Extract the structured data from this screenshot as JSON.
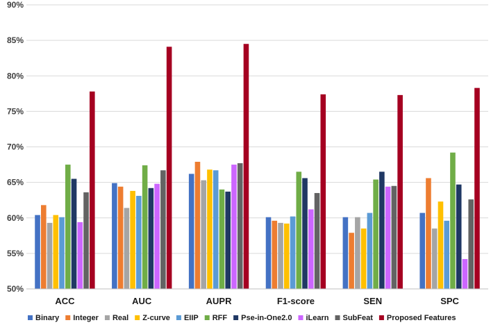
{
  "chart_data": {
    "type": "bar",
    "title": "",
    "xlabel": "",
    "ylabel": "",
    "ylim": [
      50,
      90
    ],
    "yticks": [
      50,
      55,
      60,
      65,
      70,
      75,
      80,
      85,
      90
    ],
    "ytick_labels": [
      "50%",
      "55%",
      "60%",
      "65%",
      "70%",
      "75%",
      "80%",
      "85%",
      "90%"
    ],
    "grid": true,
    "legend_position": "bottom",
    "categories": [
      "ACC",
      "AUC",
      "AUPR",
      "F1-score",
      "SEN",
      "SPC"
    ],
    "series": [
      {
        "name": "Binary",
        "color": "#4472C4",
        "values": [
          60.4,
          64.9,
          66.2,
          60.1,
          60.1,
          60.7
        ]
      },
      {
        "name": "Integer",
        "color": "#ED7D31",
        "values": [
          61.8,
          64.4,
          67.9,
          59.6,
          57.9,
          65.6
        ]
      },
      {
        "name": "Real",
        "color": "#A5A5A5",
        "values": [
          59.3,
          61.4,
          65.3,
          59.3,
          60.1,
          58.5
        ]
      },
      {
        "name": "Z-curve",
        "color": "#FFC000",
        "values": [
          60.4,
          63.8,
          66.8,
          59.2,
          58.5,
          62.3
        ]
      },
      {
        "name": "EIIP",
        "color": "#5B9BD5",
        "values": [
          60.1,
          63.1,
          66.7,
          60.2,
          60.7,
          59.6
        ]
      },
      {
        "name": "RFF",
        "color": "#70AD47",
        "values": [
          67.5,
          67.4,
          64.0,
          66.5,
          65.4,
          69.2
        ]
      },
      {
        "name": "Pse-in-One2.0",
        "color": "#203864",
        "values": [
          65.5,
          64.2,
          63.7,
          65.6,
          66.5,
          64.7
        ]
      },
      {
        "name": "iLearn",
        "color": "#CC66FF",
        "values": [
          59.4,
          64.8,
          67.5,
          61.2,
          64.4,
          54.2
        ]
      },
      {
        "name": "SubFeat",
        "color": "#636363",
        "values": [
          63.6,
          66.7,
          67.7,
          63.5,
          64.5,
          62.6
        ]
      },
      {
        "name": "Proposed Features",
        "color": "#A50021",
        "values": [
          77.8,
          84.1,
          84.5,
          77.4,
          77.3,
          78.3
        ]
      }
    ]
  }
}
